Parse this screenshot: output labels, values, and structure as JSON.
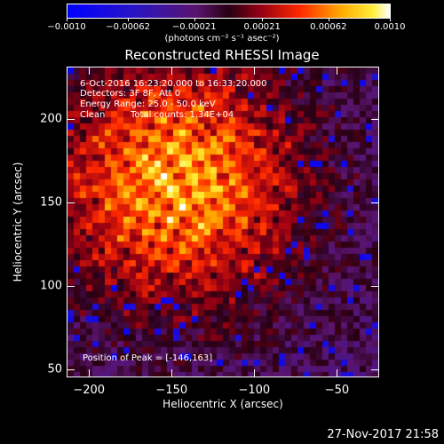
{
  "colorbar": {
    "ticks": [
      "-0.0010",
      "-0.00062",
      "-0.00021",
      "0.00021",
      "0.00062",
      "0.0010"
    ],
    "tick_values": [
      -0.001,
      -0.00062,
      -0.00021,
      0.00021,
      0.00062,
      0.001
    ],
    "range": [
      -0.001,
      0.001
    ],
    "units": "(photons cm⁻² s⁻¹ asec⁻²)"
  },
  "chart_data": {
    "type": "heatmap",
    "title": "Reconstructed RHESSI Image",
    "xlabel": "Heliocentric X (arcsec)",
    "ylabel": "Heliocentric Y (arcsec)",
    "xlim": [
      -213,
      -25
    ],
    "ylim": [
      46,
      231
    ],
    "xticks": [
      -200,
      -150,
      -100,
      -50
    ],
    "xtick_labels": [
      "−200",
      "−150",
      "−100",
      "−50"
    ],
    "yticks": [
      50,
      100,
      150,
      200
    ],
    "ytick_labels": [
      "50",
      "100",
      "150",
      "200"
    ],
    "peak_position": [
      -146,
      163
    ],
    "colormap": "red-temperature with blue negatives",
    "grid": false
  },
  "info": {
    "time_range": "6-Oct-2016 16:23:20.000 to 16:33:20.000",
    "detectors": "Detectors: 3F 8F, Att 0",
    "energy": "Energy Range: 25.0 - 50.0 keV",
    "method": "Clean",
    "counts": "Total counts: 1.34E+04",
    "peak": "Position of Peak = [-146,163]"
  },
  "timestamp": "27-Nov-2017 21:58"
}
